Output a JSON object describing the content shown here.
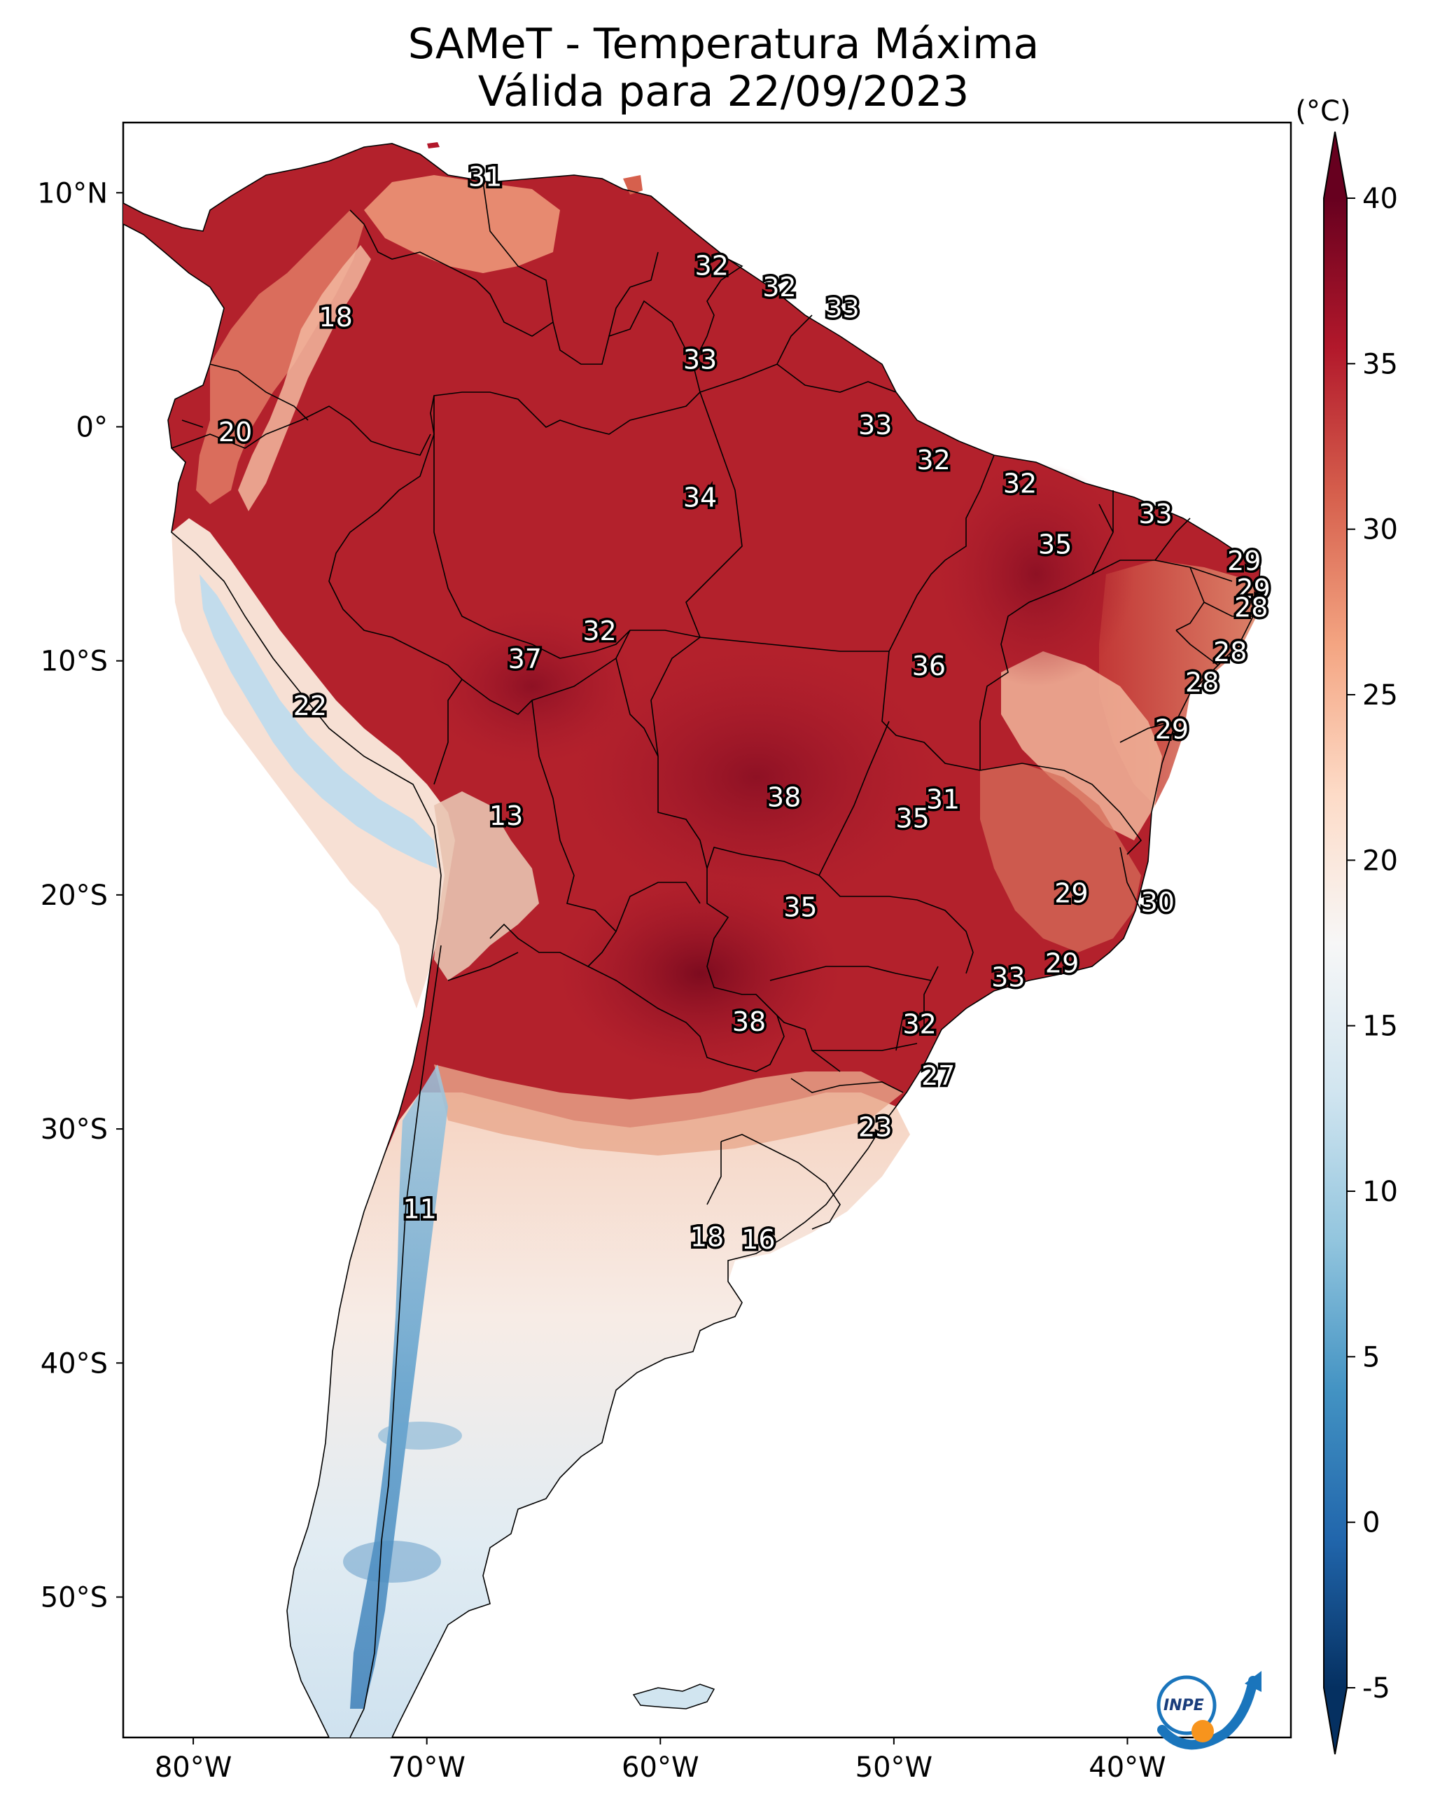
{
  "title_line1": "SAMeT - Temperatura Máxima",
  "title_line2": "Válida para 22/09/2023",
  "colorbar": {
    "unit": "(°C)",
    "ticks": [
      "40",
      "35",
      "30",
      "25",
      "20",
      "15",
      "10",
      "5",
      "0",
      "-5"
    ],
    "min": -5,
    "max": 40,
    "colormap": "RdBu_r",
    "colors": [
      "#67001f",
      "#b2182b",
      "#d6604d",
      "#f4a582",
      "#fddbc7",
      "#f7f7f7",
      "#d1e5f0",
      "#92c5de",
      "#4393c3",
      "#2166ac",
      "#053061"
    ]
  },
  "axes": {
    "lon_ticks": [
      "80°W",
      "70°W",
      "60°W",
      "50°W",
      "40°W"
    ],
    "lat_ticks": [
      "10°N",
      "0°",
      "10°S",
      "20°S",
      "30°S",
      "40°S",
      "50°S"
    ],
    "lon_range": [
      -83,
      -33
    ],
    "lat_range": [
      -56,
      13
    ]
  },
  "logo": {
    "text": "INPE",
    "colors": [
      "#1a75bc",
      "#f7941d"
    ]
  },
  "labels": [
    {
      "v": "31",
      "lon": -67.5,
      "lat": 10.6
    },
    {
      "v": "18",
      "lon": -73.9,
      "lat": 4.6
    },
    {
      "v": "20",
      "lon": -78.2,
      "lat": -0.3
    },
    {
      "v": "32",
      "lon": -57.8,
      "lat": 6.8
    },
    {
      "v": "32",
      "lon": -54.9,
      "lat": 5.9
    },
    {
      "v": "33",
      "lon": -52.2,
      "lat": 5.0
    },
    {
      "v": "33",
      "lon": -58.3,
      "lat": 2.8
    },
    {
      "v": "33",
      "lon": -50.8,
      "lat": 0.0
    },
    {
      "v": "32",
      "lon": -48.3,
      "lat": -1.5
    },
    {
      "v": "32",
      "lon": -44.6,
      "lat": -2.5
    },
    {
      "v": "34",
      "lon": -58.3,
      "lat": -3.1
    },
    {
      "v": "33",
      "lon": -38.8,
      "lat": -3.8
    },
    {
      "v": "35",
      "lon": -43.1,
      "lat": -5.1
    },
    {
      "v": "29",
      "lon": -35.0,
      "lat": -5.8
    },
    {
      "v": "29",
      "lon": -34.6,
      "lat": -7.0
    },
    {
      "v": "28",
      "lon": -34.7,
      "lat": -7.8
    },
    {
      "v": "32",
      "lon": -62.6,
      "lat": -8.8
    },
    {
      "v": "37",
      "lon": -65.8,
      "lat": -10.0
    },
    {
      "v": "36",
      "lon": -48.5,
      "lat": -10.3
    },
    {
      "v": "28",
      "lon": -35.6,
      "lat": -9.7
    },
    {
      "v": "28",
      "lon": -36.8,
      "lat": -11.0
    },
    {
      "v": "29",
      "lon": -38.1,
      "lat": -13.0
    },
    {
      "v": "22",
      "lon": -75.0,
      "lat": -12.0
    },
    {
      "v": "38",
      "lon": -54.7,
      "lat": -15.9
    },
    {
      "v": "31",
      "lon": -47.9,
      "lat": -16.0
    },
    {
      "v": "35",
      "lon": -49.2,
      "lat": -16.8
    },
    {
      "v": "13",
      "lon": -66.6,
      "lat": -16.7
    },
    {
      "v": "29",
      "lon": -42.4,
      "lat": -20.0
    },
    {
      "v": "30",
      "lon": -38.7,
      "lat": -20.4
    },
    {
      "v": "35",
      "lon": -54.0,
      "lat": -20.6
    },
    {
      "v": "29",
      "lon": -42.8,
      "lat": -23.0
    },
    {
      "v": "33",
      "lon": -45.1,
      "lat": -23.6
    },
    {
      "v": "38",
      "lon": -56.2,
      "lat": -25.5
    },
    {
      "v": "32",
      "lon": -48.9,
      "lat": -25.6
    },
    {
      "v": "27",
      "lon": -48.1,
      "lat": -27.8
    },
    {
      "v": "23",
      "lon": -50.8,
      "lat": -30.0
    },
    {
      "v": "11",
      "lon": -70.3,
      "lat": -33.5
    },
    {
      "v": "18",
      "lon": -58.0,
      "lat": -34.7
    },
    {
      "v": "16",
      "lon": -55.8,
      "lat": -34.8
    }
  ]
}
